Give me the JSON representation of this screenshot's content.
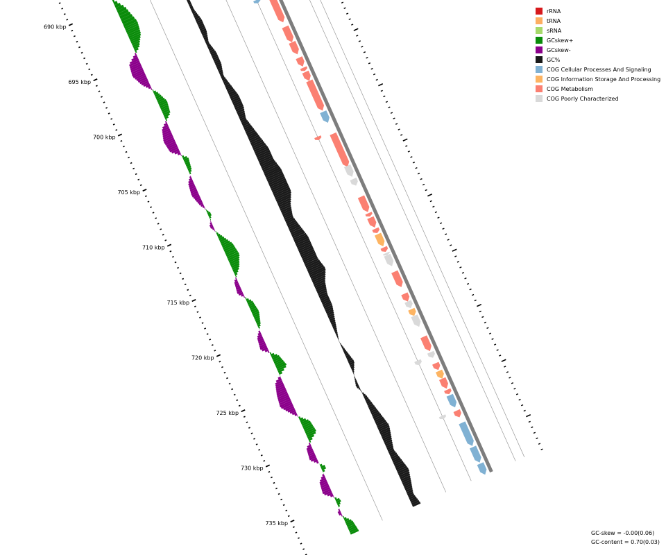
{
  "legend": [
    {
      "label": "rRNA",
      "color": "#d7191c"
    },
    {
      "label": "tRNA",
      "color": "#fdae61"
    },
    {
      "label": "sRNA",
      "color": "#a6d96a"
    },
    {
      "label": "GCskew+",
      "color": "#0a8c0a"
    },
    {
      "label": "GCskew-",
      "color": "#8b008b"
    },
    {
      "label": "GC%",
      "color": "#1a1a1a"
    },
    {
      "label": "COG Cellular Processes And Signaling",
      "color": "#80b1d3"
    },
    {
      "label": "COG Information Storage And Processing",
      "color": "#fdb462"
    },
    {
      "label": "COG Metabolism",
      "color": "#fb8072"
    },
    {
      "label": "COG Poorly Characterized",
      "color": "#d9d9d9"
    }
  ],
  "footer": {
    "gc_skew": "GC-skew = -0.00(0.06)",
    "gc_content": "GC-content = 0.70(0.03)"
  },
  "axis_labels": [
    "690 kbp",
    "695 kbp",
    "700 kbp",
    "705 kbp",
    "710 kbp",
    "715 kbp",
    "720 kbp",
    "725 kbp",
    "730 kbp",
    "735 kbp"
  ],
  "chart_data": {
    "type": "genome-map",
    "range_kbp": [
      688,
      738
    ],
    "ticks_kbp": [
      690,
      695,
      700,
      705,
      710,
      715,
      720,
      725,
      730,
      735
    ],
    "features": [
      {
        "start": 688.8,
        "end": 689.6,
        "strand": "+",
        "cog": "Metabolism"
      },
      {
        "start": 690.2,
        "end": 691.4,
        "strand": "-",
        "cog": "Metabolism"
      },
      {
        "start": 691.2,
        "end": 691.6,
        "strand": "-",
        "cog": "Poorly Characterized"
      },
      {
        "start": 691.8,
        "end": 692.3,
        "strand": "-",
        "cog": "Metabolism"
      },
      {
        "start": 692.4,
        "end": 693.3,
        "strand": "-",
        "cog": "Metabolism"
      },
      {
        "start": 694.4,
        "end": 694.7,
        "strand": "+",
        "cog": "Cellular Processes And Signaling"
      },
      {
        "start": 694.8,
        "end": 697.0,
        "strand": "-",
        "cog": "Metabolism"
      },
      {
        "start": 697.4,
        "end": 698.8,
        "strand": "-",
        "cog": "Metabolism"
      },
      {
        "start": 698.8,
        "end": 699.9,
        "strand": "-",
        "cog": "Metabolism"
      },
      {
        "start": 700.2,
        "end": 701.0,
        "strand": "-",
        "cog": "Metabolism"
      },
      {
        "start": 701.1,
        "end": 701.4,
        "strand": "-",
        "cog": "Metabolism"
      },
      {
        "start": 701.5,
        "end": 702.3,
        "strand": "-",
        "cog": "Metabolism"
      },
      {
        "start": 702.3,
        "end": 705.0,
        "strand": "-",
        "cog": "Metabolism"
      },
      {
        "start": 705.1,
        "end": 706.1,
        "strand": "-",
        "cog": "Cellular Processes And Signaling"
      },
      {
        "start": 706.8,
        "end": 707.1,
        "strand": "+",
        "cog": "Metabolism"
      },
      {
        "start": 707.1,
        "end": 710.1,
        "strand": "-",
        "cog": "Metabolism"
      },
      {
        "start": 710.0,
        "end": 711.0,
        "strand": "-",
        "cog": "Poorly Characterized"
      },
      {
        "start": 711.2,
        "end": 711.8,
        "strand": "-",
        "cog": "Poorly Characterized"
      },
      {
        "start": 712.8,
        "end": 714.2,
        "strand": "-",
        "cog": "Metabolism"
      },
      {
        "start": 714.3,
        "end": 714.6,
        "strand": "-",
        "cog": "Metabolism"
      },
      {
        "start": 714.7,
        "end": 715.6,
        "strand": "-",
        "cog": "Metabolism"
      },
      {
        "start": 715.7,
        "end": 716.1,
        "strand": "-",
        "cog": "Metabolism"
      },
      {
        "start": 716.2,
        "end": 717.3,
        "strand": "-",
        "cog": "Information Storage And Processing"
      },
      {
        "start": 717.4,
        "end": 717.8,
        "strand": "-",
        "cog": "Metabolism"
      },
      {
        "start": 717.9,
        "end": 718.1,
        "strand": "-",
        "cog": "Poorly Characterized"
      },
      {
        "start": 718.1,
        "end": 719.1,
        "strand": "-",
        "cog": "Poorly Characterized"
      },
      {
        "start": 719.6,
        "end": 721.0,
        "strand": "-",
        "cog": "Metabolism"
      },
      {
        "start": 721.6,
        "end": 722.3,
        "strand": "-",
        "cog": "Metabolism"
      },
      {
        "start": 722.3,
        "end": 722.9,
        "strand": "-",
        "cog": "Poorly Characterized"
      },
      {
        "start": 723.0,
        "end": 723.6,
        "strand": "-",
        "cog": "Information Storage And Processing"
      },
      {
        "start": 723.6,
        "end": 724.6,
        "strand": "-",
        "cog": "Poorly Characterized"
      },
      {
        "start": 725.5,
        "end": 726.8,
        "strand": "-",
        "cog": "Metabolism"
      },
      {
        "start": 726.9,
        "end": 727.4,
        "strand": "-",
        "cog": "Poorly Characterized"
      },
      {
        "start": 727.1,
        "end": 727.5,
        "strand": "+",
        "cog": "Poorly Characterized"
      },
      {
        "start": 727.9,
        "end": 728.5,
        "strand": "-",
        "cog": "Metabolism"
      },
      {
        "start": 728.6,
        "end": 729.3,
        "strand": "-",
        "cog": "Information Storage And Processing"
      },
      {
        "start": 729.3,
        "end": 730.2,
        "strand": "-",
        "cog": "Metabolism"
      },
      {
        "start": 730.3,
        "end": 730.7,
        "strand": "-",
        "cog": "Metabolism"
      },
      {
        "start": 730.8,
        "end": 731.9,
        "strand": "-",
        "cog": "Cellular Processes And Signaling"
      },
      {
        "start": 732.1,
        "end": 732.4,
        "strand": "+",
        "cog": "Poorly Characterized"
      },
      {
        "start": 732.2,
        "end": 732.8,
        "strand": "-",
        "cog": "Metabolism"
      },
      {
        "start": 733.3,
        "end": 735.4,
        "strand": "-",
        "cog": "Cellular Processes And Signaling"
      },
      {
        "start": 735.5,
        "end": 736.9,
        "strand": "-",
        "cog": "Cellular Processes And Signaling"
      },
      {
        "start": 737.0,
        "end": 738.0,
        "strand": "-",
        "cog": "Cellular Processes And Signaling"
      }
    ],
    "gc_skew": [
      {
        "kbp": 688.0,
        "value": 0.02
      },
      {
        "kbp": 689.0,
        "value": -0.02
      },
      {
        "kbp": 690.5,
        "value": 0.05
      },
      {
        "kbp": 692.0,
        "value": 0.08
      },
      {
        "kbp": 693.0,
        "value": 0.07
      },
      {
        "kbp": 694.0,
        "value": 0.03
      },
      {
        "kbp": 695.0,
        "value": -0.06
      },
      {
        "kbp": 696.0,
        "value": -0.07
      },
      {
        "kbp": 697.0,
        "value": -0.04
      },
      {
        "kbp": 698.0,
        "value": 0.02
      },
      {
        "kbp": 699.0,
        "value": 0.05
      },
      {
        "kbp": 700.0,
        "value": 0.04
      },
      {
        "kbp": 701.0,
        "value": -0.04
      },
      {
        "kbp": 702.0,
        "value": -0.06
      },
      {
        "kbp": 703.0,
        "value": -0.05
      },
      {
        "kbp": 704.0,
        "value": 0.03
      },
      {
        "kbp": 705.0,
        "value": 0.02
      },
      {
        "kbp": 706.0,
        "value": -0.03
      },
      {
        "kbp": 707.0,
        "value": -0.04
      },
      {
        "kbp": 708.0,
        "value": -0.02
      },
      {
        "kbp": 709.0,
        "value": 0.02
      },
      {
        "kbp": 710.0,
        "value": -0.02
      },
      {
        "kbp": 711.0,
        "value": 0.02
      },
      {
        "kbp": 712.0,
        "value": 0.06
      },
      {
        "kbp": 713.0,
        "value": 0.07
      },
      {
        "kbp": 714.0,
        "value": 0.04
      },
      {
        "kbp": 715.0,
        "value": -0.02
      },
      {
        "kbp": 716.0,
        "value": -0.03
      },
      {
        "kbp": 717.0,
        "value": 0.03
      },
      {
        "kbp": 718.0,
        "value": 0.04
      },
      {
        "kbp": 719.0,
        "value": 0.02
      },
      {
        "kbp": 720.0,
        "value": -0.03
      },
      {
        "kbp": 721.0,
        "value": -0.04
      },
      {
        "kbp": 722.0,
        "value": 0.04
      },
      {
        "kbp": 723.0,
        "value": 0.06
      },
      {
        "kbp": 724.0,
        "value": -0.04
      },
      {
        "kbp": 725.0,
        "value": -0.06
      },
      {
        "kbp": 726.0,
        "value": -0.07
      },
      {
        "kbp": 727.0,
        "value": -0.02
      },
      {
        "kbp": 728.0,
        "value": 0.05
      },
      {
        "kbp": 729.0,
        "value": 0.06
      },
      {
        "kbp": 730.0,
        "value": -0.03
      },
      {
        "kbp": 731.0,
        "value": -0.04
      },
      {
        "kbp": 732.0,
        "value": 0.03
      },
      {
        "kbp": 733.0,
        "value": -0.04
      },
      {
        "kbp": 734.0,
        "value": -0.05
      },
      {
        "kbp": 735.0,
        "value": 0.03
      },
      {
        "kbp": 736.0,
        "value": -0.02
      },
      {
        "kbp": 737.0,
        "value": 0.04
      },
      {
        "kbp": 738.0,
        "value": 0.05
      }
    ],
    "gc_content": [
      {
        "kbp": 688.0,
        "value": 0.69
      },
      {
        "kbp": 689.0,
        "value": 0.7
      },
      {
        "kbp": 690.0,
        "value": 0.7
      },
      {
        "kbp": 691.0,
        "value": 0.71
      },
      {
        "kbp": 692.0,
        "value": 0.71
      },
      {
        "kbp": 693.0,
        "value": 0.71
      },
      {
        "kbp": 694.0,
        "value": 0.72
      },
      {
        "kbp": 695.0,
        "value": 0.72
      },
      {
        "kbp": 696.0,
        "value": 0.71
      },
      {
        "kbp": 697.0,
        "value": 0.72
      },
      {
        "kbp": 698.0,
        "value": 0.72
      },
      {
        "kbp": 699.0,
        "value": 0.71
      },
      {
        "kbp": 700.0,
        "value": 0.72
      },
      {
        "kbp": 701.0,
        "value": 0.73
      },
      {
        "kbp": 702.0,
        "value": 0.73
      },
      {
        "kbp": 703.0,
        "value": 0.72
      },
      {
        "kbp": 704.0,
        "value": 0.73
      },
      {
        "kbp": 705.0,
        "value": 0.74
      },
      {
        "kbp": 706.0,
        "value": 0.75
      },
      {
        "kbp": 707.0,
        "value": 0.75
      },
      {
        "kbp": 708.0,
        "value": 0.76
      },
      {
        "kbp": 709.0,
        "value": 0.76
      },
      {
        "kbp": 710.0,
        "value": 0.76
      },
      {
        "kbp": 711.0,
        "value": 0.74
      },
      {
        "kbp": 712.0,
        "value": 0.73
      },
      {
        "kbp": 713.0,
        "value": 0.74
      },
      {
        "kbp": 714.0,
        "value": 0.75
      },
      {
        "kbp": 715.0,
        "value": 0.75
      },
      {
        "kbp": 716.0,
        "value": 0.75
      },
      {
        "kbp": 717.0,
        "value": 0.76
      },
      {
        "kbp": 718.0,
        "value": 0.74
      },
      {
        "kbp": 719.0,
        "value": 0.73
      },
      {
        "kbp": 720.0,
        "value": 0.73
      },
      {
        "kbp": 721.0,
        "value": 0.72
      },
      {
        "kbp": 722.0,
        "value": 0.71
      },
      {
        "kbp": 723.0,
        "value": 0.7
      },
      {
        "kbp": 724.0,
        "value": 0.71
      },
      {
        "kbp": 725.0,
        "value": 0.72
      },
      {
        "kbp": 726.0,
        "value": 0.7
      },
      {
        "kbp": 727.0,
        "value": 0.69
      },
      {
        "kbp": 728.0,
        "value": 0.71
      },
      {
        "kbp": 729.0,
        "value": 0.72
      },
      {
        "kbp": 730.0,
        "value": 0.73
      },
      {
        "kbp": 731.0,
        "value": 0.74
      },
      {
        "kbp": 732.0,
        "value": 0.73
      },
      {
        "kbp": 733.0,
        "value": 0.72
      },
      {
        "kbp": 734.0,
        "value": 0.73
      },
      {
        "kbp": 735.0,
        "value": 0.74
      },
      {
        "kbp": 736.0,
        "value": 0.73
      },
      {
        "kbp": 737.0,
        "value": 0.72
      },
      {
        "kbp": 738.0,
        "value": 0.73
      }
    ]
  }
}
